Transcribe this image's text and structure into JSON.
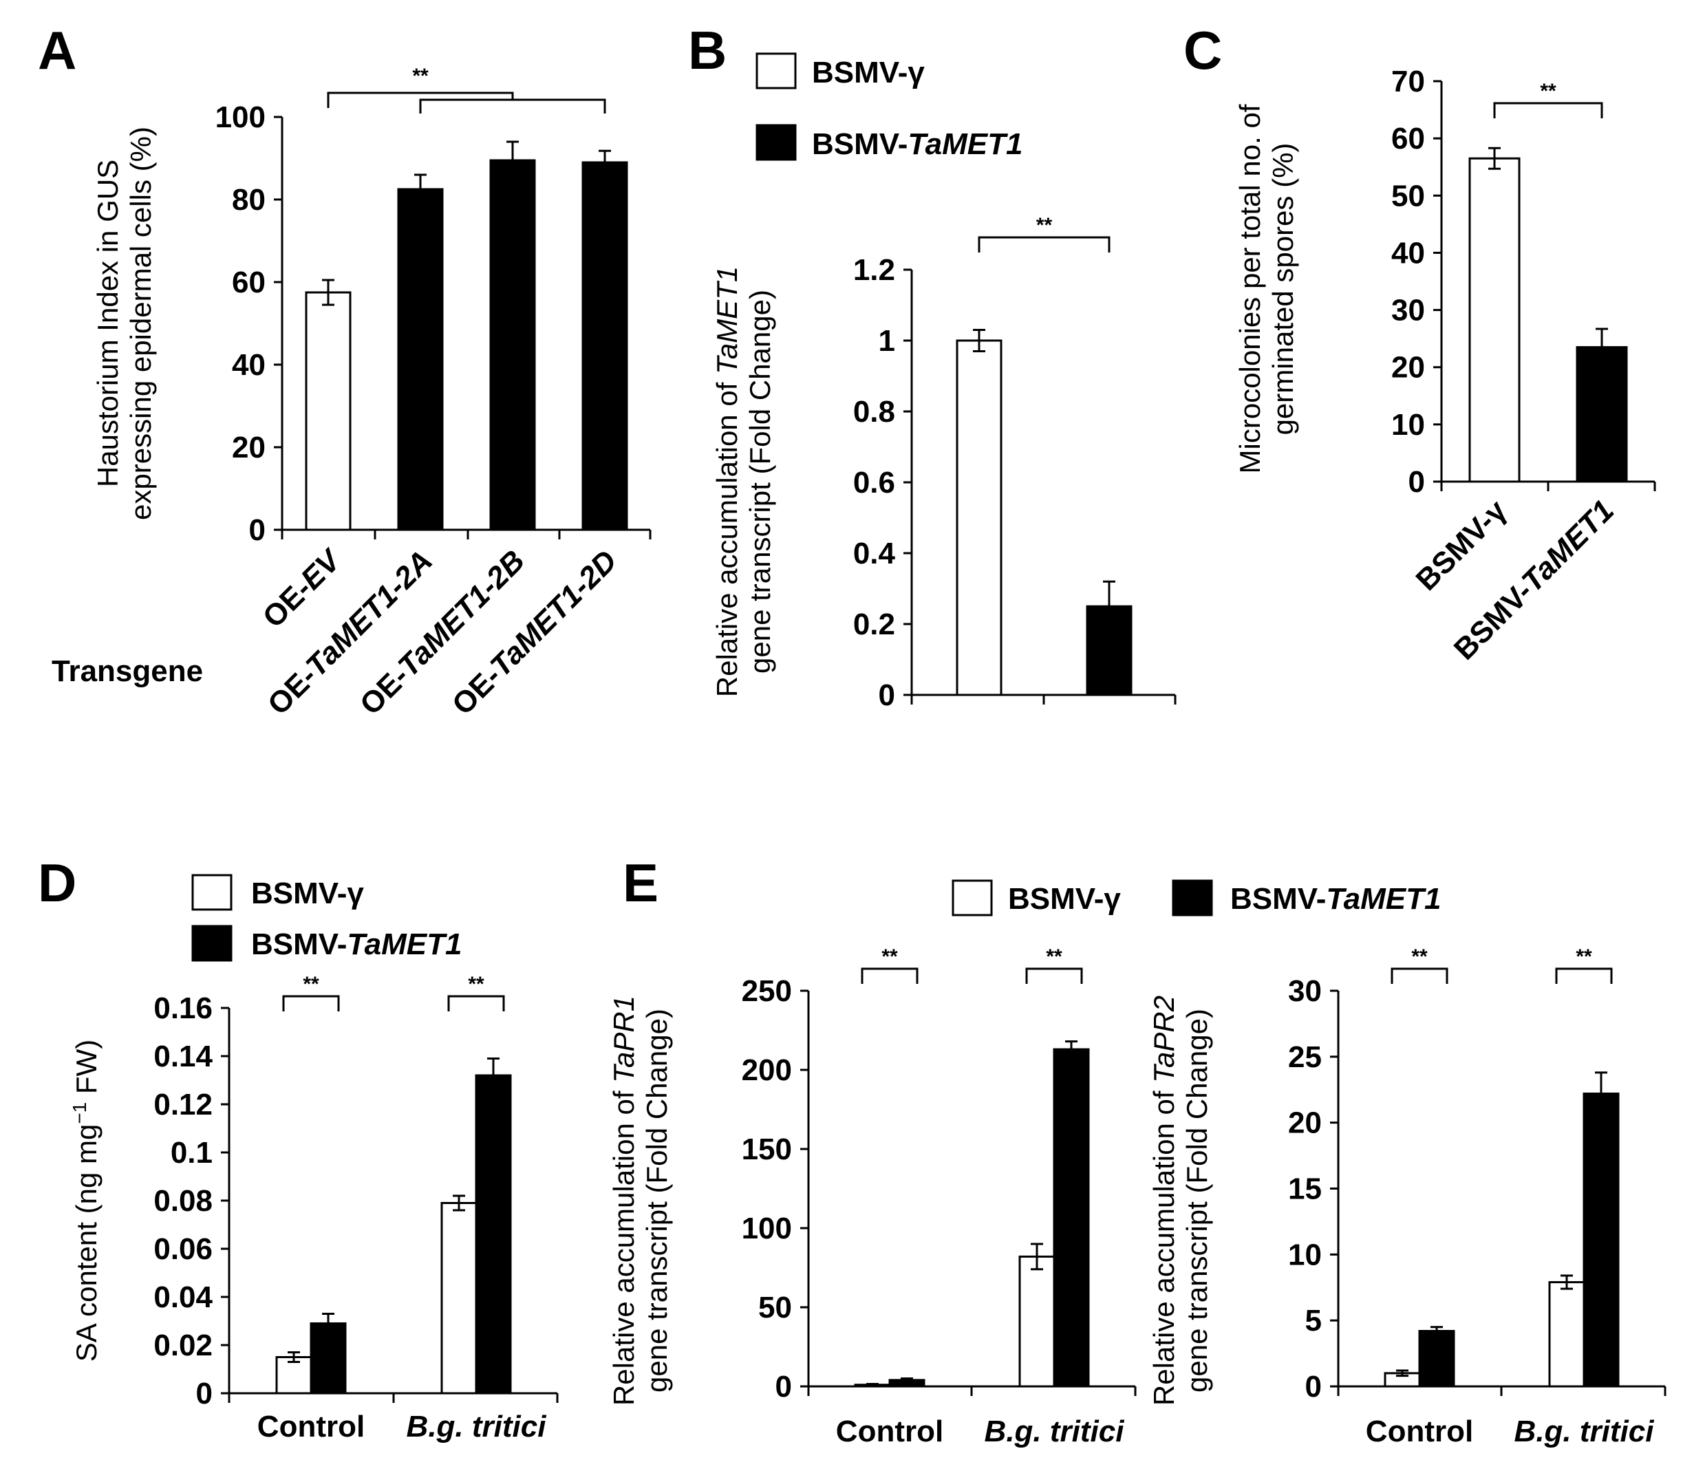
{
  "chart_data": [
    {
      "panel": "A",
      "type": "bar",
      "xlabel": "Transgene",
      "ylabel_lines": [
        "Haustorium Index in GUS",
        "expressing  epidermal cells (%)"
      ],
      "ylim": [
        0,
        100
      ],
      "yticks": [
        "0",
        "20",
        "40",
        "60",
        "80",
        "100"
      ],
      "categories": [
        {
          "prefix": "OE-",
          "italic": "EV",
          "suffix": ""
        },
        {
          "prefix": "OE-",
          "italic": "TaMET1-2A",
          "suffix": ""
        },
        {
          "prefix": "OE-",
          "italic": "TaMET1-2B",
          "suffix": ""
        },
        {
          "prefix": "OE-",
          "italic": "TaMET1-2D",
          "suffix": ""
        }
      ],
      "values": [
        57.5,
        82.5,
        89.5,
        89
      ],
      "errors": [
        3,
        3.5,
        4.5,
        2.8
      ],
      "fills": [
        "#ffffff",
        "#000000",
        "#000000",
        "#000000"
      ],
      "significance": "**"
    },
    {
      "panel": "B",
      "type": "bar",
      "ylabel_lines": [
        {
          "prefix": "Relative accumulation of ",
          "italic": "TaMET1",
          "suffix": ""
        },
        {
          "prefix": "gene transcript  (Fold Change)",
          "italic": "",
          "suffix": ""
        }
      ],
      "ylim": [
        0,
        1.2
      ],
      "yticks": [
        "0",
        "0.2",
        "0.4",
        "0.6",
        "0.8",
        "1",
        "1.2"
      ],
      "series": [
        {
          "name": "BSMV-γ",
          "values": [
            1.0
          ],
          "errors": [
            0.03
          ],
          "fill": "#ffffff"
        },
        {
          "name": "BSMV-TaMET1",
          "values": [
            0.25
          ],
          "errors": [
            0.07
          ],
          "fill": "#000000"
        }
      ],
      "significance": "**"
    },
    {
      "panel": "C",
      "type": "bar",
      "ylabel_lines": [
        "Microcolonies per total no. of",
        "germinated spores (%)"
      ],
      "ylim": [
        0,
        70
      ],
      "yticks": [
        "0",
        "10",
        "20",
        "30",
        "40",
        "50",
        "60",
        "70"
      ],
      "categories": [
        {
          "prefix": "BSMV-γ",
          "italic": "",
          "suffix": ""
        },
        {
          "prefix": "BSMV-",
          "italic": "TaMET1",
          "suffix": ""
        }
      ],
      "values": [
        56.5,
        23.5
      ],
      "errors": [
        1.8,
        3.2
      ],
      "fills": [
        "#ffffff",
        "#000000"
      ],
      "significance": "**"
    },
    {
      "panel": "D",
      "type": "bar",
      "ylabel": "SA content (ng mg",
      "ylabel_sup": "−1",
      "ylabel_tail": " FW)",
      "ylim": [
        0,
        0.16
      ],
      "yticks": [
        "0",
        "0.02",
        "0.04",
        "0.06",
        "0.08",
        "0.1",
        "0.12",
        "0.14",
        "0.16"
      ],
      "categories": [
        {
          "prefix": "Control",
          "italic": "",
          "suffix": ""
        },
        {
          "prefix": "",
          "italic": "B.g. tritici",
          "suffix": ""
        }
      ],
      "series": [
        {
          "name": "BSMV-γ",
          "values": [
            0.015,
            0.079
          ],
          "errors": [
            0.002,
            0.003
          ],
          "fill": "#ffffff"
        },
        {
          "name": "BSMV-TaMET1",
          "values": [
            0.029,
            0.132
          ],
          "errors": [
            0.004,
            0.007
          ],
          "fill": "#000000"
        }
      ],
      "significance": [
        "**",
        "**"
      ]
    },
    {
      "panel": "E",
      "type": "bar",
      "ylabel_lines": [
        {
          "prefix": "Relative accumulation of ",
          "italic": "TaPR1",
          "suffix": ""
        },
        {
          "prefix": "gene transcript  (Fold Change)",
          "italic": "",
          "suffix": ""
        }
      ],
      "ylim": [
        0,
        250
      ],
      "yticks": [
        "0",
        "50",
        "100",
        "150",
        "200",
        "250"
      ],
      "categories": [
        {
          "prefix": "Control",
          "italic": "",
          "suffix": ""
        },
        {
          "prefix": "",
          "italic": "B.g. tritici",
          "suffix": ""
        }
      ],
      "series": [
        {
          "name": "BSMV-γ",
          "values": [
            1,
            82
          ],
          "errors": [
            0.5,
            8
          ],
          "fill": "#ffffff"
        },
        {
          "name": "BSMV-TaMET1",
          "values": [
            4,
            213
          ],
          "errors": [
            1,
            5
          ],
          "fill": "#000000"
        }
      ],
      "significance": [
        "**",
        "**"
      ]
    },
    {
      "panel": "E",
      "type": "bar",
      "ylabel_lines": [
        {
          "prefix": "Relative accumulation of ",
          "italic": "TaPR2",
          "suffix": ""
        },
        {
          "prefix": "gene transcript  (Fold Change)",
          "italic": "",
          "suffix": ""
        }
      ],
      "ylim": [
        0,
        30
      ],
      "yticks": [
        "0",
        "5",
        "10",
        "15",
        "20",
        "25",
        "30"
      ],
      "categories": [
        {
          "prefix": "Control",
          "italic": "",
          "suffix": ""
        },
        {
          "prefix": "",
          "italic": "B.g. tritici",
          "suffix": ""
        }
      ],
      "series": [
        {
          "name": "BSMV-γ",
          "values": [
            1.0,
            7.9
          ],
          "errors": [
            0.2,
            0.5
          ],
          "fill": "#ffffff"
        },
        {
          "name": "BSMV-TaMET1",
          "values": [
            4.2,
            22.2
          ],
          "errors": [
            0.3,
            1.6
          ],
          "fill": "#000000"
        }
      ],
      "significance": [
        "**",
        "**"
      ]
    }
  ],
  "legend": {
    "white": "BSMV-γ",
    "black_prefix": "BSMV-",
    "black_italic": "TaMET1"
  }
}
